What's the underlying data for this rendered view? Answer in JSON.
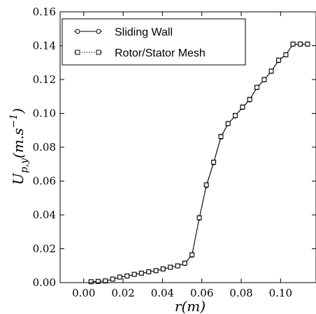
{
  "chart_data": {
    "type": "line",
    "xlabel": "r(m)",
    "ylabel": "U_{p,y}(m.s^{-1})",
    "xlim": [
      -0.012,
      0.118
    ],
    "ylim": [
      0.0,
      0.16
    ],
    "x_ticks": [
      "0.00",
      "0.02",
      "0.04",
      "0.06",
      "0.08",
      "0.10"
    ],
    "y_ticks": [
      "0.00",
      "0.02",
      "0.04",
      "0.06",
      "0.08",
      "0.10",
      "0.12",
      "0.14",
      "0.16"
    ],
    "grid": false,
    "legend_position": "top-left",
    "series": [
      {
        "name": "Sliding Wall",
        "marker": "circle",
        "line_style": "solid",
        "color": "#000000",
        "x": [
          0.0037,
          0.0073,
          0.011,
          0.0147,
          0.0183,
          0.022,
          0.0257,
          0.0293,
          0.033,
          0.0367,
          0.0403,
          0.044,
          0.0477,
          0.0513,
          0.055,
          0.0587,
          0.0623,
          0.066,
          0.0697,
          0.0733,
          0.077,
          0.0807,
          0.0843,
          0.088,
          0.0917,
          0.0953,
          0.099,
          0.1027,
          0.1063,
          0.11,
          0.1137
        ],
        "y": [
          0.0005,
          0.0007,
          0.001,
          0.002,
          0.0032,
          0.0038,
          0.0048,
          0.0055,
          0.0063,
          0.007,
          0.008,
          0.009,
          0.0098,
          0.0113,
          0.0162,
          0.038,
          0.0572,
          0.0708,
          0.086,
          0.0938,
          0.0985,
          0.1035,
          0.108,
          0.1152,
          0.1198,
          0.1248,
          0.1312,
          0.1345,
          0.1408,
          0.1408,
          0.1408
        ]
      },
      {
        "name": "Rotor/Stator Mesh",
        "marker": "square",
        "line_style": "dotted",
        "color": "#000000",
        "x": [
          0.0037,
          0.0073,
          0.011,
          0.0147,
          0.0183,
          0.022,
          0.0257,
          0.0293,
          0.033,
          0.0367,
          0.0403,
          0.044,
          0.0477,
          0.0513,
          0.055,
          0.0587,
          0.0623,
          0.066,
          0.0697,
          0.0733,
          0.077,
          0.0807,
          0.0843,
          0.088,
          0.0917,
          0.0953,
          0.099,
          0.1027,
          0.1063,
          0.11,
          0.1137
        ],
        "y": [
          0.0005,
          0.0007,
          0.001,
          0.0021,
          0.0033,
          0.0039,
          0.0049,
          0.0056,
          0.0064,
          0.0071,
          0.0081,
          0.0091,
          0.0099,
          0.0115,
          0.0165,
          0.0384,
          0.0578,
          0.0712,
          0.0864,
          0.094,
          0.0988,
          0.1038,
          0.1083,
          0.1154,
          0.12,
          0.125,
          0.1315,
          0.1347,
          0.141,
          0.141,
          0.141
        ]
      }
    ]
  }
}
